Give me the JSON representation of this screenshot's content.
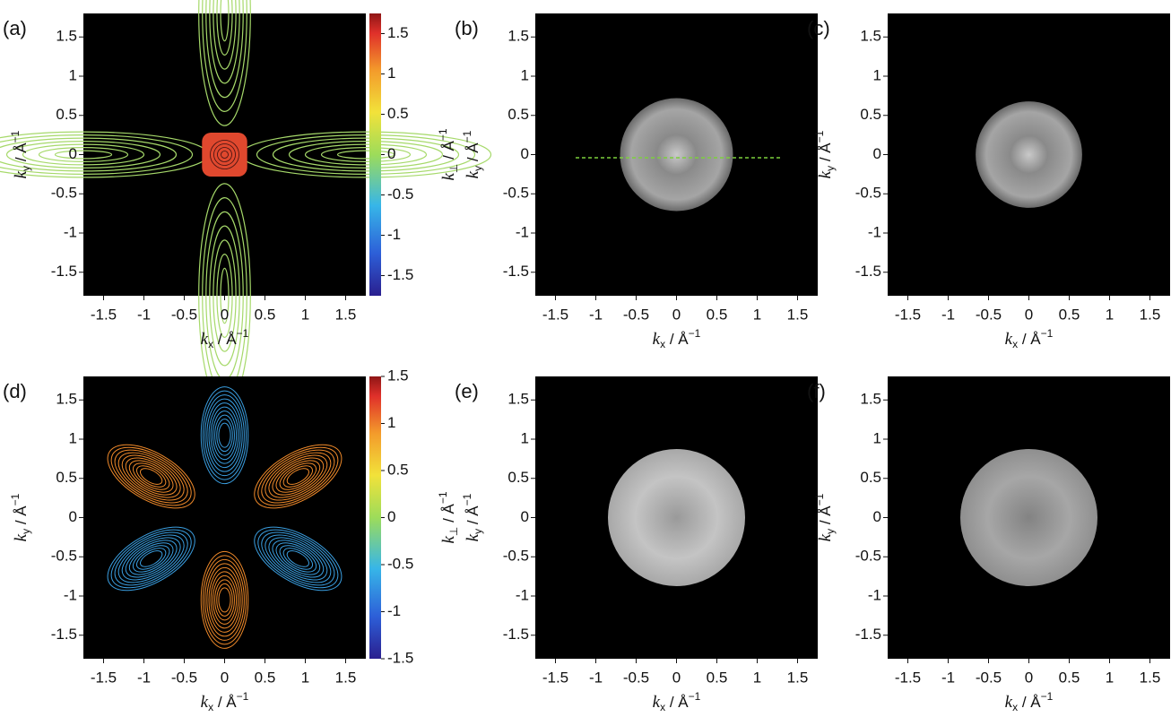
{
  "chart_data": [
    {
      "type": "image",
      "label": "(a)",
      "xlabel": {
        "var": "k",
        "sub": "x",
        "sep": " / Å",
        "sup": "−1"
      },
      "ylabel": {
        "var": "k",
        "sub": "y",
        "sep": " / Å",
        "sup": "−1"
      },
      "xlim": [
        -1.75,
        1.75
      ],
      "ylim": [
        -1.8,
        1.8
      ],
      "xticks": [
        -1.5,
        -1,
        -0.5,
        0,
        0.5,
        1,
        1.5
      ],
      "yticks": [
        -1.5,
        -1,
        -0.5,
        0,
        0.5,
        1,
        1.5
      ],
      "colorbar": {
        "label": {
          "var": "k",
          "sub": "⊥",
          "sep": " / Å",
          "sup": "−1"
        },
        "lim": [
          -1.75,
          1.75
        ],
        "ticks": [
          -1.5,
          -1,
          -0.5,
          0,
          0.5,
          1,
          1.5
        ]
      }
    },
    {
      "type": "image",
      "label": "(b)",
      "xlabel": {
        "var": "k",
        "sub": "x",
        "sep": " / Å",
        "sup": "−1"
      },
      "ylabel": {
        "var": "k",
        "sub": "y",
        "sep": " / Å",
        "sup": "−1"
      },
      "xlim": [
        -1.75,
        1.75
      ],
      "ylim": [
        -1.8,
        1.8
      ],
      "xticks": [
        -1.5,
        -1,
        -0.5,
        0,
        0.5,
        1,
        1.5
      ],
      "yticks": [
        -1.5,
        -1,
        -0.5,
        0,
        0.5,
        1,
        1.5
      ]
    },
    {
      "type": "image",
      "label": "(c)",
      "xlabel": {
        "var": "k",
        "sub": "x",
        "sep": " / Å",
        "sup": "−1"
      },
      "ylabel": {
        "var": "k",
        "sub": "y",
        "sep": " / Å",
        "sup": "−1"
      },
      "xlim": [
        -1.75,
        1.75
      ],
      "ylim": [
        -1.8,
        1.8
      ],
      "xticks": [
        -1.5,
        -1,
        -0.5,
        0,
        0.5,
        1,
        1.5
      ],
      "yticks": [
        -1.5,
        -1,
        -0.5,
        0,
        0.5,
        1,
        1.5
      ]
    },
    {
      "type": "image",
      "label": "(d)",
      "xlabel": {
        "var": "k",
        "sub": "x",
        "sep": " / Å",
        "sup": "−1"
      },
      "ylabel": {
        "var": "k",
        "sub": "y",
        "sep": " / Å",
        "sup": "−1"
      },
      "xlim": [
        -1.75,
        1.75
      ],
      "ylim": [
        -1.8,
        1.8
      ],
      "xticks": [
        -1.5,
        -1,
        -0.5,
        0,
        0.5,
        1,
        1.5
      ],
      "yticks": [
        -1.5,
        -1,
        -0.5,
        0,
        0.5,
        1,
        1.5
      ],
      "colorbar": {
        "label": {
          "var": "k",
          "sub": "⊥",
          "sep": " / Å",
          "sup": "−1"
        },
        "lim": [
          -1.5,
          1.5
        ],
        "ticks": [
          -1.5,
          -1,
          -0.5,
          0,
          0.5,
          1,
          1.5
        ]
      }
    },
    {
      "type": "image",
      "label": "(e)",
      "xlabel": {
        "var": "k",
        "sub": "x",
        "sep": " / Å",
        "sup": "−1"
      },
      "ylabel": {
        "var": "k",
        "sub": "y",
        "sep": " / Å",
        "sup": "−1"
      },
      "xlim": [
        -1.75,
        1.75
      ],
      "ylim": [
        -1.8,
        1.8
      ],
      "xticks": [
        -1.5,
        -1,
        -0.5,
        0,
        0.5,
        1,
        1.5
      ],
      "yticks": [
        -1.5,
        -1,
        -0.5,
        0,
        0.5,
        1,
        1.5
      ]
    },
    {
      "type": "image",
      "label": "(f)",
      "xlabel": {
        "var": "k",
        "sub": "x",
        "sep": " / Å",
        "sup": "−1"
      },
      "ylabel": {
        "var": "k",
        "sub": "y",
        "sep": " / Å",
        "sup": "−1"
      },
      "xlim": [
        -1.75,
        1.75
      ],
      "ylim": [
        -1.8,
        1.8
      ],
      "xticks": [
        -1.5,
        -1,
        -0.5,
        0,
        0.5,
        1,
        1.5
      ],
      "yticks": [
        -1.5,
        -1,
        -0.5,
        0,
        0.5,
        1,
        1.5
      ]
    }
  ]
}
